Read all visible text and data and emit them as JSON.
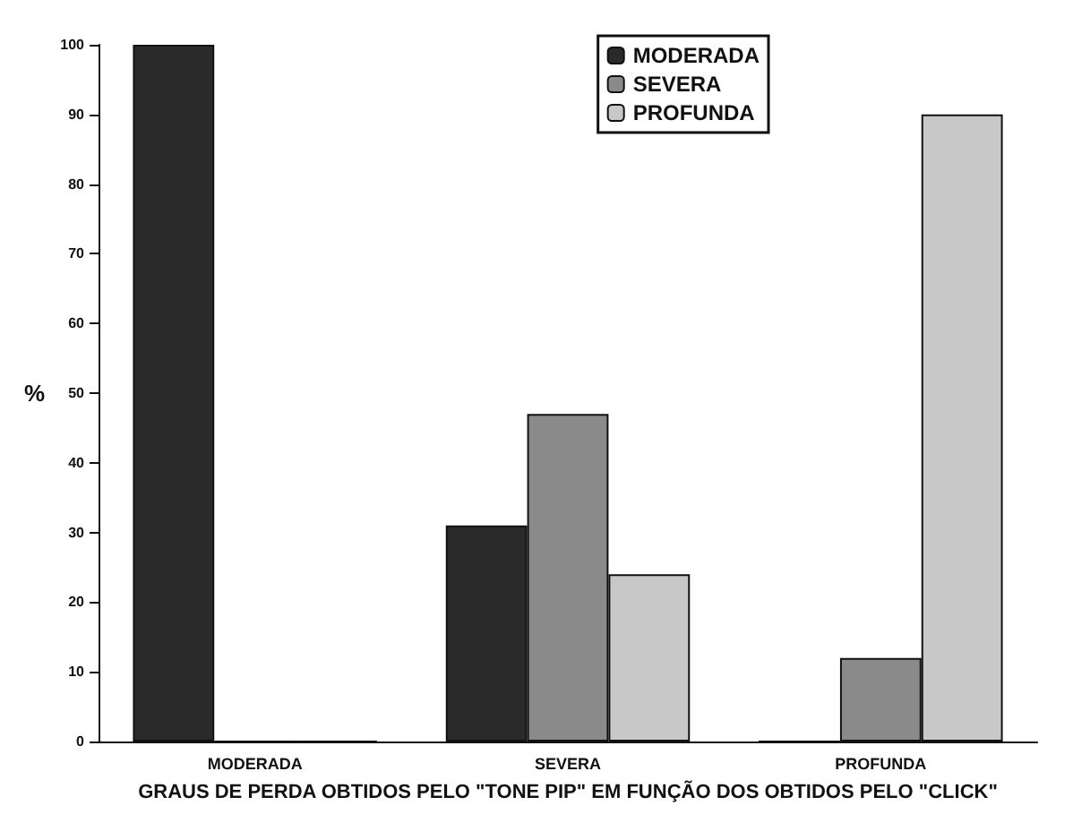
{
  "chart_data": {
    "type": "bar",
    "xlabel": "GRAUS DE PERDA OBTIDOS PELO \"TONE PIP\" EM FUNÇÃO DOS OBTIDOS PELO \"CLICK\"",
    "ylabel": "%",
    "categories": [
      "MODERADA",
      "SEVERA",
      "PROFUNDA"
    ],
    "series": [
      {
        "name": "MODERADA",
        "color": "#2a2a2a",
        "values": [
          100,
          31,
          0
        ]
      },
      {
        "name": "SEVERA",
        "color": "#8a8a8a",
        "values": [
          0,
          47,
          12
        ]
      },
      {
        "name": "PROFUNDA",
        "color": "#c8c8c8",
        "values": [
          0,
          24,
          90
        ]
      }
    ],
    "ylim": [
      0,
      100
    ],
    "yticks": [
      0,
      10,
      20,
      30,
      40,
      50,
      60,
      70,
      80,
      90,
      100
    ],
    "grid": false,
    "legend": "top right"
  }
}
